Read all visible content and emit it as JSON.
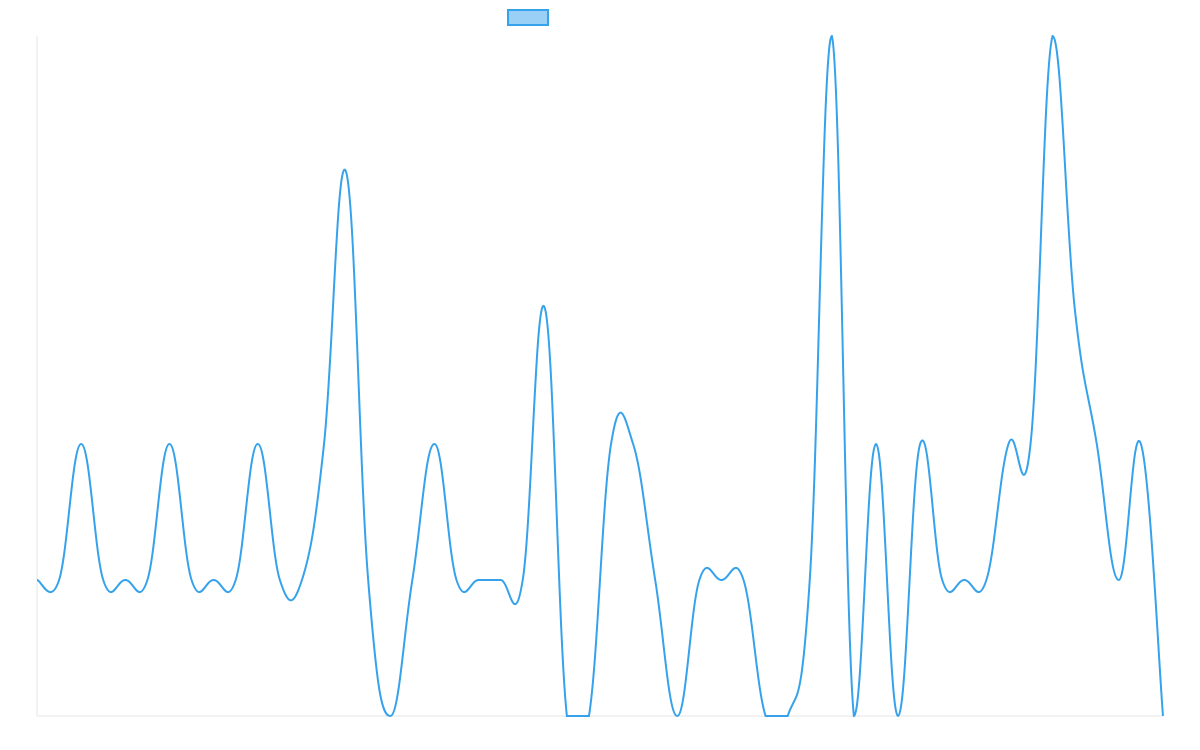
{
  "chart_data": {
    "type": "line",
    "series": [
      {
        "color": "#36a2eb",
        "fill": "#9ad0f5",
        "values": [
          1,
          1,
          2,
          1,
          1,
          1,
          2,
          1,
          1,
          1,
          2,
          1,
          1,
          2,
          4,
          1,
          0,
          1,
          2,
          1,
          1,
          1,
          1,
          3,
          0,
          0,
          2,
          2,
          1,
          0,
          1,
          1,
          1,
          0,
          0,
          1,
          5,
          0,
          2,
          0,
          2,
          1,
          1,
          1,
          2,
          2,
          5,
          3,
          2,
          1,
          2,
          0
        ]
      }
    ],
    "ylim": [
      0,
      5
    ]
  }
}
